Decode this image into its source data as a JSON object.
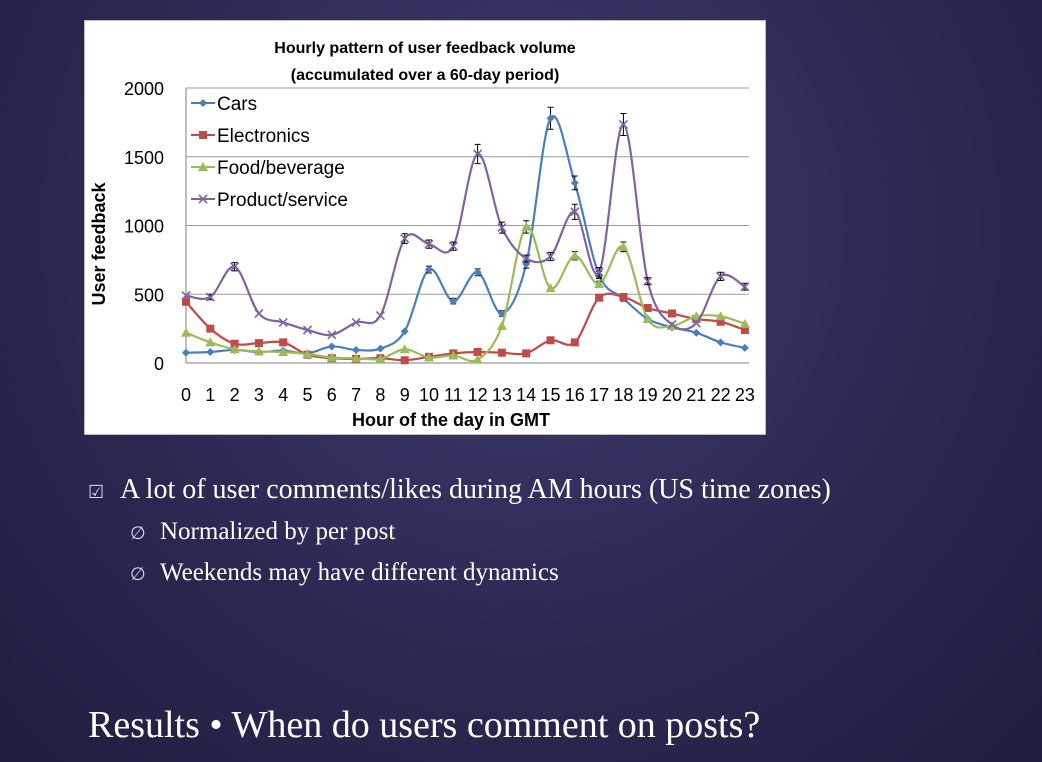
{
  "slide": {
    "title": "Results • When do users comment on posts?",
    "bullets": [
      {
        "text": "A lot of user comments/likes during AM hours (US time zones)",
        "sub": [
          "Normalized by per post",
          "Weekends may have different dynamics"
        ]
      }
    ],
    "bullet_icon": "bullet-icon",
    "sub_bullet_icon": "sub-bullet-icon"
  },
  "chart_data": {
    "type": "line",
    "title": "Hourly pattern of user feedback volume",
    "subtitle": "(accumulated over a 60-day period)",
    "xlabel": "Hour of the day in GMT",
    "ylabel": "User feedback",
    "categories": [
      "0",
      "1",
      "2",
      "3",
      "4",
      "5",
      "6",
      "7",
      "8",
      "9",
      "10",
      "11",
      "12",
      "13",
      "14",
      "15",
      "16",
      "17",
      "18",
      "19",
      "20",
      "21",
      "22",
      "23"
    ],
    "ylim": [
      0,
      2000
    ],
    "yticks": [
      0,
      500,
      1000,
      1500,
      2000
    ],
    "grid": true,
    "legend": "top-left",
    "series": [
      {
        "name": "Cars",
        "color": "#4a7ebb",
        "marker": "diamond",
        "values": [
          75,
          80,
          95,
          80,
          90,
          70,
          120,
          95,
          105,
          230,
          680,
          450,
          660,
          360,
          720,
          1780,
          1310,
          640,
          470,
          320,
          260,
          220,
          150,
          110
        ],
        "errors": [
          0,
          0,
          0,
          0,
          0,
          0,
          0,
          0,
          0,
          0,
          25,
          20,
          25,
          20,
          30,
          80,
          50,
          25,
          20,
          0,
          0,
          0,
          0,
          0
        ]
      },
      {
        "name": "Electronics",
        "color": "#be4b48",
        "marker": "square",
        "values": [
          445,
          250,
          140,
          145,
          150,
          60,
          35,
          30,
          35,
          20,
          45,
          70,
          80,
          75,
          70,
          165,
          150,
          475,
          480,
          400,
          360,
          320,
          300,
          240
        ],
        "errors": [
          0,
          0,
          0,
          0,
          0,
          0,
          0,
          0,
          0,
          0,
          0,
          0,
          0,
          0,
          0,
          0,
          0,
          0,
          0,
          0,
          0,
          0,
          0,
          0
        ]
      },
      {
        "name": "Food/beverage",
        "color": "#9bbb59",
        "marker": "triangle",
        "values": [
          220,
          150,
          100,
          85,
          80,
          65,
          40,
          35,
          30,
          100,
          40,
          55,
          25,
          270,
          990,
          545,
          780,
          575,
          845,
          320,
          270,
          340,
          340,
          285
        ],
        "errors": [
          0,
          0,
          0,
          0,
          0,
          0,
          0,
          0,
          0,
          0,
          0,
          0,
          0,
          0,
          45,
          0,
          30,
          20,
          35,
          0,
          0,
          0,
          0,
          0
        ]
      },
      {
        "name": "Product/service",
        "color": "#8064a2",
        "marker": "x",
        "values": [
          490,
          480,
          700,
          360,
          295,
          240,
          205,
          295,
          345,
          905,
          865,
          850,
          1520,
          985,
          760,
          775,
          1100,
          660,
          1735,
          595,
          280,
          290,
          630,
          555
        ],
        "errors": [
          0,
          20,
          30,
          0,
          0,
          0,
          0,
          0,
          0,
          35,
          30,
          30,
          70,
          40,
          25,
          30,
          55,
          35,
          80,
          25,
          0,
          0,
          30,
          25
        ]
      }
    ]
  }
}
